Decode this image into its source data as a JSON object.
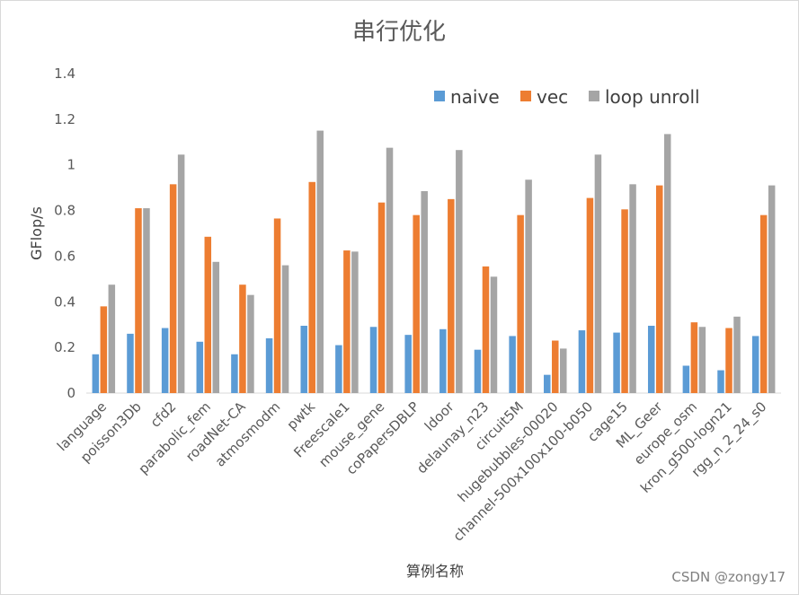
{
  "chart_data": {
    "type": "bar",
    "title": "串行优化",
    "xlabel": "算例名称",
    "ylabel": "GFlop/s",
    "ylim": [
      0,
      1.4
    ],
    "yticks": [
      "0",
      "0.2",
      "0.4",
      "0.6",
      "0.8",
      "1",
      "1.2",
      "1.4"
    ],
    "grid": false,
    "legend_position": "top-right",
    "categories": [
      "language",
      "poisson3Db",
      "cfd2",
      "parabolic_fem",
      "roadNet-CA",
      "atmosmodm",
      "pwtk",
      "Freescale1",
      "mouse_gene",
      "coPapersDBLP",
      "ldoor",
      "delaunay_n23",
      "circuit5M",
      "hugebubbles-00020",
      "channel-500x100x100-b050",
      "cage15",
      "ML_Geer",
      "europe_osm",
      "kron_g500-logn21",
      "rgg_n_2_24_s0"
    ],
    "series": [
      {
        "name": "naive",
        "color": "#5b9bd5",
        "values": [
          0.17,
          0.26,
          0.285,
          0.225,
          0.17,
          0.24,
          0.295,
          0.21,
          0.29,
          0.255,
          0.28,
          0.19,
          0.25,
          0.08,
          0.275,
          0.265,
          0.295,
          0.12,
          0.1,
          0.25
        ]
      },
      {
        "name": "vec",
        "color": "#ed7d31",
        "values": [
          0.38,
          0.81,
          0.915,
          0.685,
          0.475,
          0.765,
          0.925,
          0.625,
          0.835,
          0.78,
          0.85,
          0.555,
          0.78,
          0.23,
          0.855,
          0.805,
          0.91,
          0.31,
          0.285,
          0.78
        ]
      },
      {
        "name": "loop unroll",
        "color": "#a5a5a5",
        "values": [
          0.475,
          0.81,
          1.045,
          0.575,
          0.43,
          0.56,
          1.15,
          0.62,
          1.075,
          0.885,
          1.065,
          0.51,
          0.935,
          0.195,
          1.045,
          0.915,
          1.135,
          0.29,
          0.335,
          0.91
        ]
      }
    ],
    "watermark": "CSDN @zongy17"
  }
}
